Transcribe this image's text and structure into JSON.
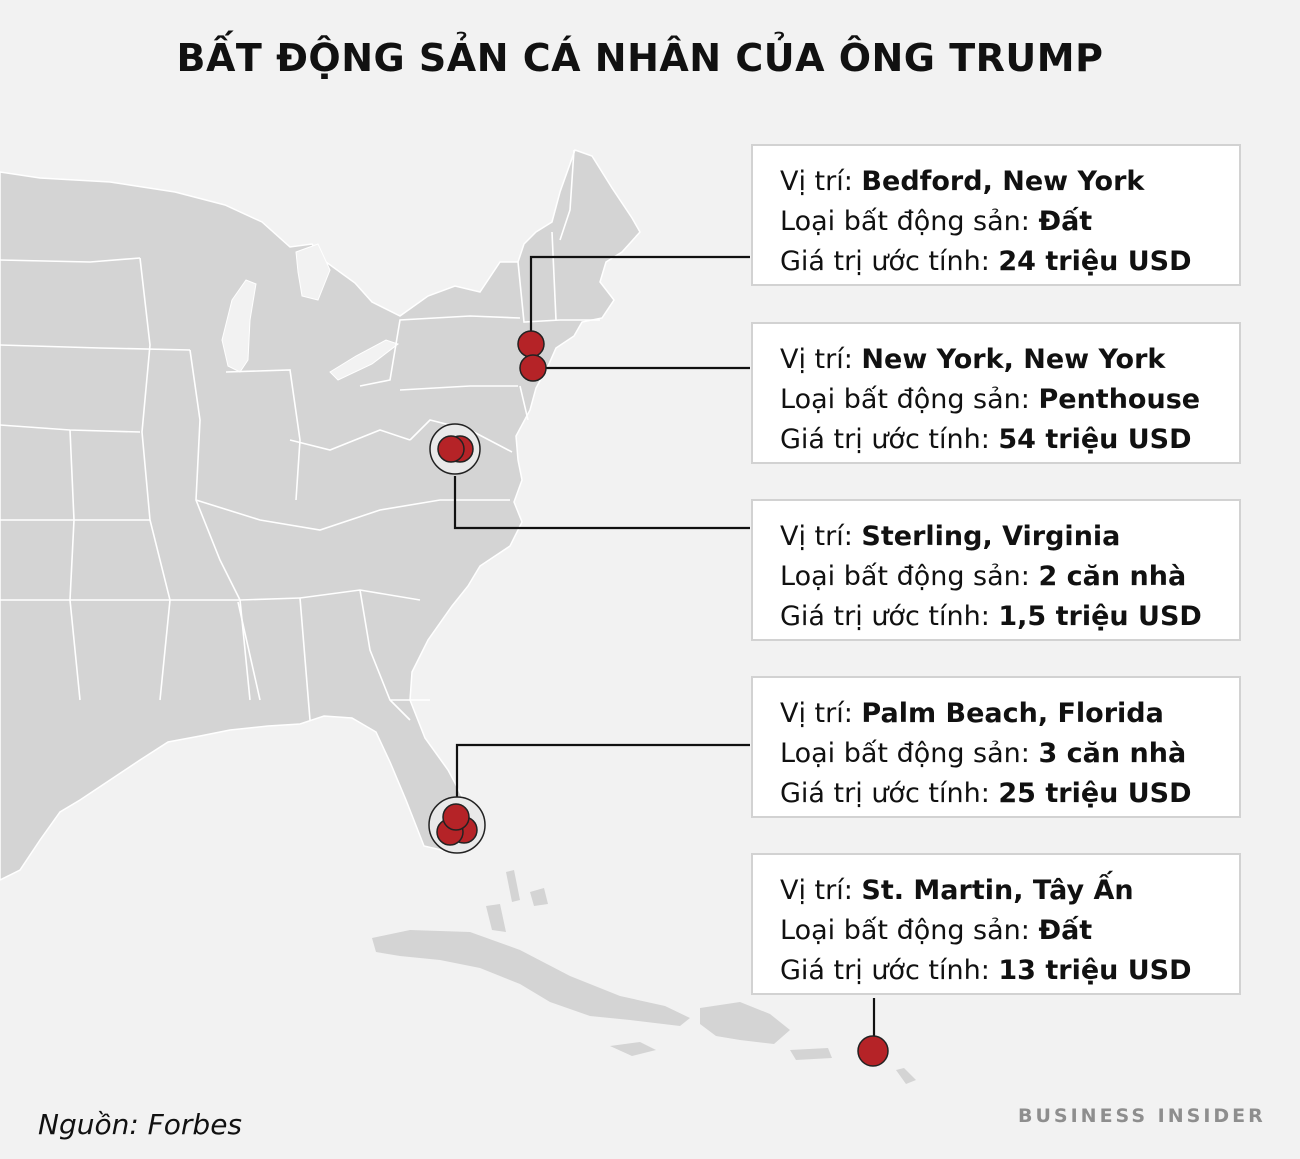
{
  "title": "BẤT ĐỘNG SẢN CÁ NHÂN CỦA ÔNG TRUMP",
  "labels": {
    "location": "Vị trí: ",
    "type": "Loại bất động sản: ",
    "value": "Giá trị ước tính: "
  },
  "properties": [
    {
      "location": "Bedford, New York",
      "type": "Đất",
      "value": "24 triệu USD"
    },
    {
      "location": "New York, New York",
      "type": "Penthouse",
      "value": "54 triệu USD"
    },
    {
      "location": "Sterling, Virginia",
      "type": "2 căn nhà",
      "value": "1,5 triệu USD"
    },
    {
      "location": "Palm Beach, Florida",
      "type": "3 căn nhà",
      "value": "25 triệu USD"
    },
    {
      "location": "St. Martin, Tây Ấn",
      "type": "Đất",
      "value": "13 triệu USD"
    }
  ],
  "source": "Nguồn: Forbes",
  "brand": "BUSINESS INSIDER",
  "colors": {
    "background": "#f2f2f2",
    "land": "#d4d4d4",
    "border": "#ffffff",
    "marker": "#b52327",
    "marker_ring": "#222222",
    "leader": "#111111"
  }
}
